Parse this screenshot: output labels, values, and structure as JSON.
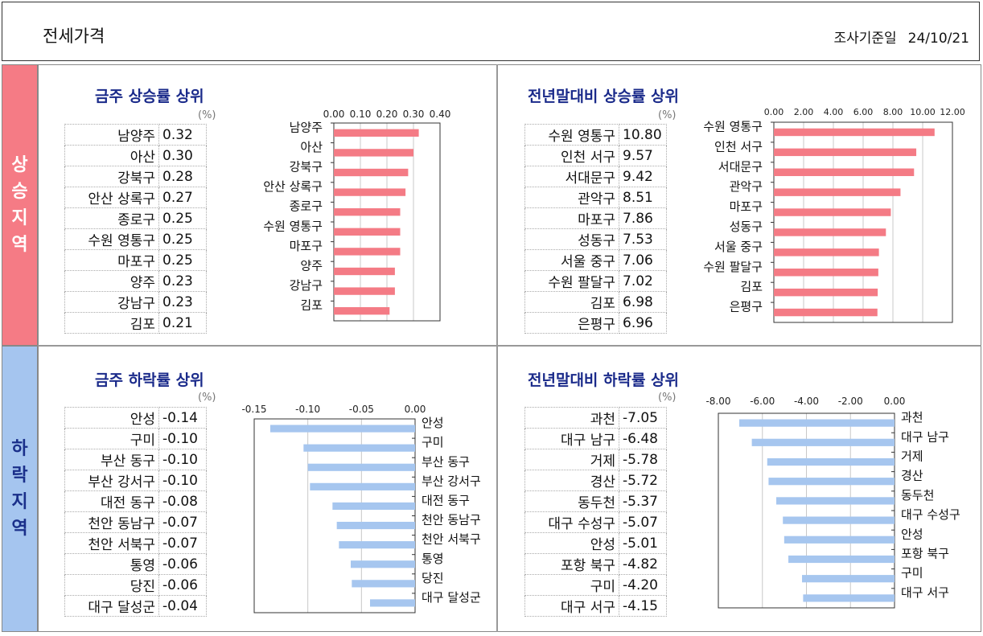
{
  "header": {
    "title": "전세가격",
    "date_label": "조사기준일",
    "date_value": "24/10/21"
  },
  "bands": {
    "up": "상승지역",
    "down": "하락지역"
  },
  "unit": "(%)",
  "chart_data": [
    {
      "type": "bar",
      "orientation": "horizontal",
      "title": "금주 상승률 상위",
      "color": "#f47b85",
      "categories": [
        "남양주",
        "아산",
        "강북구",
        "안산 상록구",
        "종로구",
        "수원 영통구",
        "마포구",
        "양주",
        "강남구",
        "김포"
      ],
      "values": [
        0.32,
        0.3,
        0.28,
        0.27,
        0.25,
        0.25,
        0.25,
        0.23,
        0.23,
        0.21
      ],
      "display": [
        "0.32",
        "0.30",
        "0.28",
        "0.27",
        "0.25",
        "0.25",
        "0.25",
        "0.23",
        "0.23",
        "0.21"
      ],
      "xlim": [
        0,
        0.4
      ],
      "ticks": [
        "0.00",
        "0.10",
        "0.20",
        "0.30",
        "0.40"
      ],
      "grid": true
    },
    {
      "type": "bar",
      "orientation": "horizontal",
      "title": "전년말대비 상승률 상위",
      "color": "#f47b85",
      "categories": [
        "수원 영통구",
        "인천 서구",
        "서대문구",
        "관악구",
        "마포구",
        "성동구",
        "서울 중구",
        "수원 팔달구",
        "김포",
        "은평구"
      ],
      "values": [
        10.8,
        9.57,
        9.42,
        8.51,
        7.86,
        7.53,
        7.06,
        7.02,
        6.98,
        6.96
      ],
      "display": [
        "10.80",
        "9.57",
        "9.42",
        "8.51",
        "7.86",
        "7.53",
        "7.06",
        "7.02",
        "6.98",
        "6.96"
      ],
      "xlim": [
        0,
        12
      ],
      "ticks": [
        "0.00",
        "2.00",
        "4.00",
        "6.00",
        "8.00",
        "10.00",
        "12.00"
      ],
      "grid": true
    },
    {
      "type": "bar",
      "orientation": "horizontal",
      "title": "금주 하락률 상위",
      "color": "#a6c6ef",
      "categories": [
        "안성",
        "구미",
        "부산 동구",
        "부산 강서구",
        "대전 동구",
        "천안 동남구",
        "천안 서북구",
        "통영",
        "당진",
        "대구 달성군"
      ],
      "values": [
        -0.14,
        -0.1,
        -0.1,
        -0.1,
        -0.08,
        -0.07,
        -0.07,
        -0.06,
        -0.06,
        -0.04
      ],
      "display": [
        "-0.14",
        "-0.10",
        "-0.10",
        "-0.10",
        "-0.08",
        "-0.07",
        "-0.07",
        "-0.06",
        "-0.06",
        "-0.04"
      ],
      "plotvalues": [
        -0.135,
        -0.104,
        -0.1,
        -0.098,
        -0.077,
        -0.073,
        -0.071,
        -0.06,
        -0.059,
        -0.042
      ],
      "xlim": [
        -0.15,
        0
      ],
      "ticks": [
        "-0.15",
        "-0.10",
        "-0.05",
        "0.00"
      ],
      "grid": true
    },
    {
      "type": "bar",
      "orientation": "horizontal",
      "title": "전년말대비 하락률 상위",
      "color": "#a6c6ef",
      "categories": [
        "과천",
        "대구 남구",
        "거제",
        "경산",
        "동두천",
        "대구 수성구",
        "안성",
        "포항 북구",
        "구미",
        "대구 서구"
      ],
      "values": [
        -7.05,
        -6.48,
        -5.78,
        -5.72,
        -5.37,
        -5.07,
        -5.01,
        -4.82,
        -4.2,
        -4.15
      ],
      "display": [
        "-7.05",
        "-6.48",
        "-5.78",
        "-5.72",
        "-5.37",
        "-5.07",
        "-5.01",
        "-4.82",
        "-4.20",
        "-4.15"
      ],
      "xlim": [
        -8,
        0
      ],
      "ticks": [
        "-8.00",
        "-6.00",
        "-4.00",
        "-2.00",
        "0.00"
      ],
      "grid": true
    }
  ]
}
